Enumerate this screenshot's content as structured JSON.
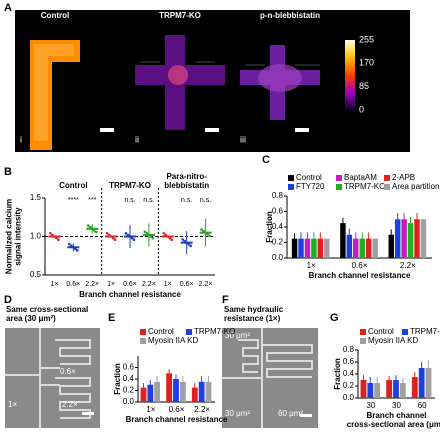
{
  "panels": [
    "A",
    "B",
    "C",
    "D",
    "E",
    "F",
    "G"
  ],
  "image_a": {
    "titles": [
      "Control",
      "TRPM7-KO",
      "p-n-blebbistatin"
    ],
    "numerals": [
      "i",
      "ii",
      "iii"
    ],
    "colorbar": [
      255,
      170,
      85,
      0
    ]
  },
  "image_d": {
    "title": [
      "Same cross-sectional",
      "area (30 μm²)"
    ],
    "labels": [
      "0.6×",
      "1×",
      "2.2×"
    ]
  },
  "image_f": {
    "title": [
      "Same hydraulic",
      "resistance (1×)"
    ],
    "labels": [
      "30 μm²",
      "30 μm²",
      "60 μm²"
    ]
  },
  "chart_data": [
    {
      "type": "dot",
      "groups": [
        [
          "Control"
        ],
        [
          "TRPM7-KO"
        ],
        [
          "Para-nitro-",
          "blebbistatin"
        ]
      ],
      "categories": [
        "1×",
        "0.6×",
        "2.2×",
        "1×",
        "0.6×",
        "2.2×",
        "1×",
        "0.6×",
        "2.2×"
      ],
      "values": [
        1,
        0.86,
        1.1,
        1,
        1.0,
        1.02,
        1,
        0.92,
        1.05
      ],
      "errors": [
        0,
        0.05,
        0.06,
        0,
        0.15,
        0.15,
        0,
        0.15,
        0.18
      ],
      "colors": [
        "#d62728",
        "#1f3fbf",
        "#2ca02c"
      ],
      "annotations": [
        "****",
        "***",
        "n.s.",
        "n.s.",
        "n.s.",
        "n.s."
      ],
      "ylabel": [
        "Normalized calcium",
        "signal intensity"
      ],
      "xlabel": "Branch channel resistance",
      "ylim": [
        0.5,
        1.5
      ],
      "yticks": [
        0.5,
        {
          "value": 1,
          "label": "1.0"
        },
        1.5
      ]
    },
    {
      "type": "bar",
      "categories": [
        "1×",
        "0.6×",
        "2.2×"
      ],
      "series": [
        {
          "name": "Control",
          "color": "#000000",
          "values": [
            0.25,
            0.45,
            0.3
          ],
          "errors": [
            0.07,
            0.07,
            0.07
          ]
        },
        {
          "name": "FTY720",
          "color": "#1f3fe0",
          "values": [
            0.25,
            0.3,
            0.5
          ],
          "errors": [
            0.08,
            0.08,
            0.08
          ]
        },
        {
          "name": "BaptaAM",
          "color": "#c020c0",
          "values": [
            0.25,
            0.25,
            0.5
          ],
          "errors": [
            0.08,
            0.08,
            0.08
          ]
        },
        {
          "name": "TRPM7-KO",
          "color": "#20b020",
          "values": [
            0.25,
            0.25,
            0.45
          ],
          "errors": [
            0.08,
            0.08,
            0.08
          ]
        },
        {
          "name": "2-APB",
          "color": "#e02020",
          "values": [
            0.25,
            0.25,
            0.5
          ],
          "errors": [
            0.08,
            0.08,
            0.08
          ]
        },
        {
          "name": "Area partition",
          "color": "#a0a0a0",
          "values": [
            0.25,
            0.25,
            0.5
          ],
          "errors": [
            0,
            0,
            0
          ]
        }
      ],
      "ylabel": [
        "Fraction"
      ],
      "xlabel": [
        "Branch channel resistance"
      ],
      "ylim": [
        0,
        0.8
      ],
      "yticks": [
        {
          "value": 0,
          "label": "0.0"
        },
        0.2,
        0.4,
        0.6,
        0.8
      ]
    },
    {
      "type": "bar",
      "categories": [
        "1×",
        "0.6×",
        "2.2×"
      ],
      "series": [
        {
          "name": "Control",
          "color": "#e02020",
          "values": [
            0.25,
            0.5,
            0.25
          ],
          "errors": [
            0.08,
            0.07,
            0.08
          ]
        },
        {
          "name": "TRPM7-KO",
          "color": "#1f3fe0",
          "values": [
            0.3,
            0.4,
            0.35
          ],
          "errors": [
            0.08,
            0.08,
            0.1
          ]
        },
        {
          "name": "Myosin IIA KD",
          "color": "#a0a0a0",
          "values": [
            0.35,
            0.35,
            0.35
          ],
          "errors": [
            0.1,
            0.1,
            0.1
          ]
        }
      ],
      "ylabel": [
        "Fraction"
      ],
      "xlabel": [
        "Branch channel resistance"
      ],
      "ylim": [
        0,
        0.8
      ],
      "yticks": [
        {
          "value": 0,
          "label": "0.0"
        },
        0.2,
        0.4,
        0.6
      ]
    },
    {
      "type": "bar",
      "categories": [
        "30",
        "30",
        "60"
      ],
      "series": [
        {
          "name": "Control",
          "color": "#e02020",
          "values": [
            0.3,
            0.3,
            0.35
          ],
          "errors": [
            0.08,
            0.07,
            0.08
          ]
        },
        {
          "name": "TRPM7-KO",
          "color": "#1f3fe0",
          "values": [
            0.25,
            0.3,
            0.5
          ],
          "errors": [
            0.1,
            0.08,
            0.1
          ]
        },
        {
          "name": "Myosin IIA KD",
          "color": "#a0a0a0",
          "values": [
            0.25,
            0.25,
            0.5
          ],
          "errors": [
            0.1,
            0.08,
            0.12
          ]
        }
      ],
      "ylabel": [
        "Fraction"
      ],
      "xlabel": [
        "Branch channel",
        "cross-sectional area (μm²)"
      ],
      "ylim": [
        0,
        0.8
      ],
      "yticks": [
        {
          "value": 0,
          "label": "0.0"
        },
        0.2,
        0.4,
        0.6,
        0.8
      ]
    }
  ]
}
